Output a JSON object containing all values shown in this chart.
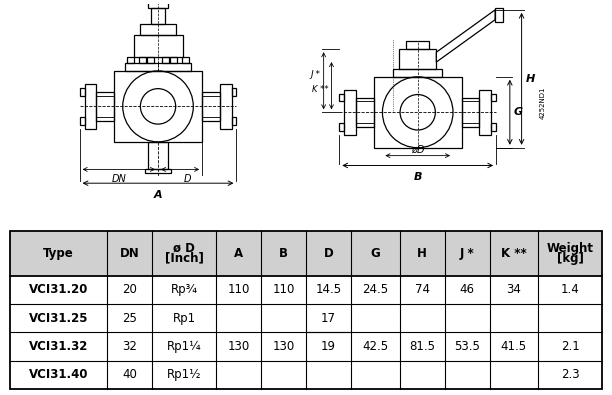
{
  "table_header_line1": [
    "Type",
    "DN",
    "ø D",
    "A",
    "B",
    "D",
    "G",
    "H",
    "J *",
    "K **",
    "Weight"
  ],
  "table_header_line2": [
    "",
    "",
    "[Inch]",
    "",
    "",
    "",
    "",
    "",
    "",
    "",
    "[kg]"
  ],
  "rows": [
    [
      "VCI31.20",
      "20",
      "Rp¾",
      "110",
      "110",
      "14.5",
      "24.5",
      "74",
      "46",
      "34",
      "1.4"
    ],
    [
      "VCI31.25",
      "25",
      "Rp1",
      "",
      "",
      "17",
      "",
      "",
      "",
      "",
      ""
    ],
    [
      "VCI31.32",
      "32",
      "Rp1¼",
      "130",
      "130",
      "19",
      "42.5",
      "81.5",
      "53.5",
      "41.5",
      "2.1"
    ],
    [
      "VCI31.40",
      "40",
      "Rp1½",
      "",
      "",
      "",
      "",
      "",
      "",
      "",
      "2.3"
    ]
  ],
  "header_bg": "#d0d0d0",
  "border_color": "#000000",
  "text_color": "#000000",
  "figure_bg": "#ffffff",
  "col_widths": [
    1.3,
    0.6,
    0.85,
    0.6,
    0.6,
    0.6,
    0.65,
    0.6,
    0.6,
    0.65,
    0.85
  ]
}
